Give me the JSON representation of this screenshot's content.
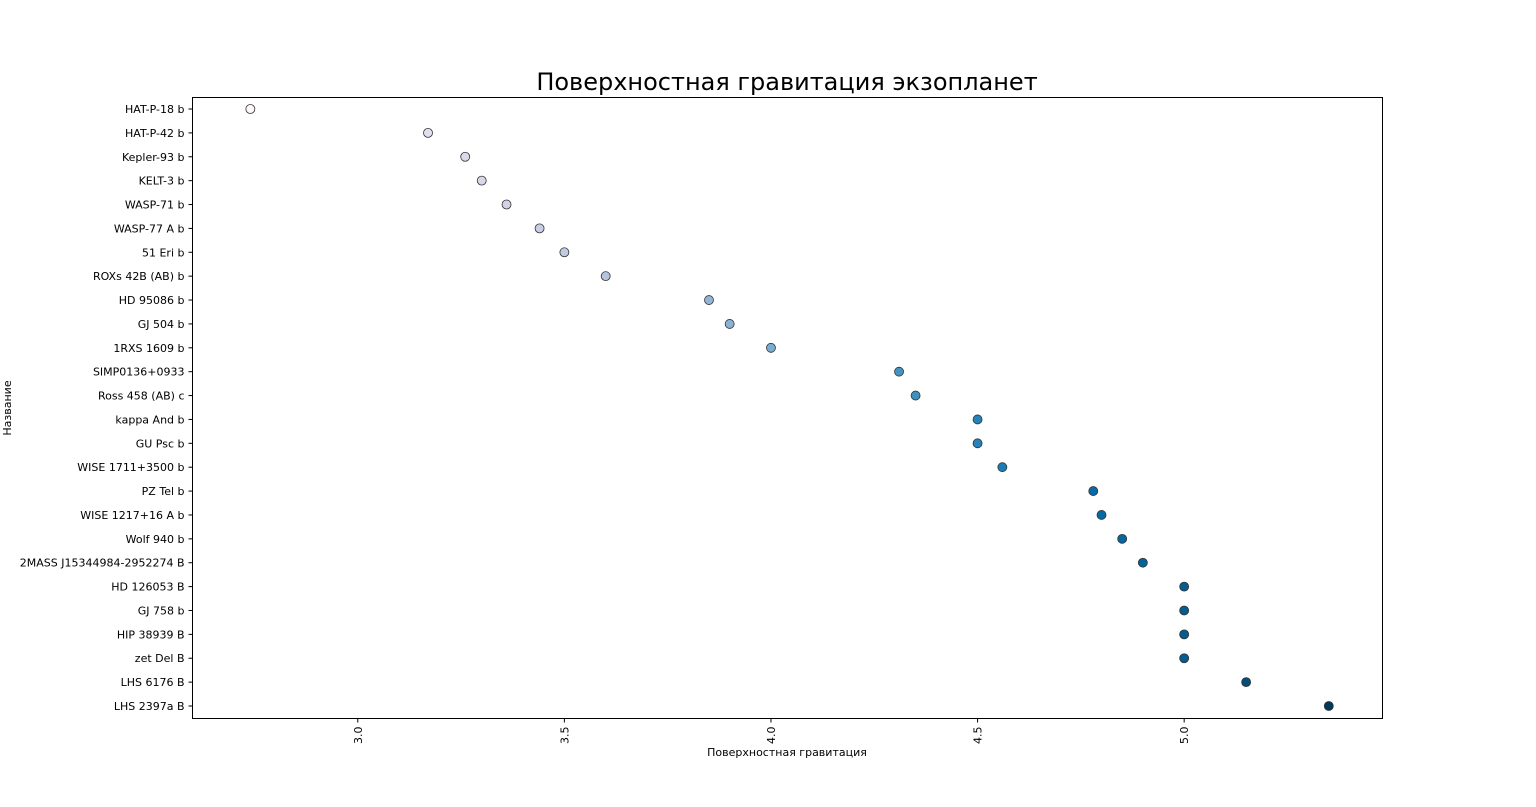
{
  "chart_data": {
    "type": "scatter",
    "title": "Поверхностная гравитация экзопланет",
    "xlabel": "Поверхностная гравитация",
    "ylabel": "Название",
    "xlim": [
      2.6,
      5.48
    ],
    "xticks": [
      "3.0",
      "3.5",
      "4.0",
      "4.5",
      "5.0"
    ],
    "grid": false,
    "colormap": [
      "#fff7fb",
      "#023858"
    ],
    "points": [
      {
        "name": "HAT-P-18 b",
        "value": 2.74
      },
      {
        "name": "HAT-P-42 b",
        "value": 3.17
      },
      {
        "name": "Kepler-93 b",
        "value": 3.26
      },
      {
        "name": "KELT-3 b",
        "value": 3.3
      },
      {
        "name": "WASP-71 b",
        "value": 3.36
      },
      {
        "name": "WASP-77 A b",
        "value": 3.44
      },
      {
        "name": "51 Eri b",
        "value": 3.5
      },
      {
        "name": "ROXs 42B (AB) b",
        "value": 3.6
      },
      {
        "name": "HD 95086 b",
        "value": 3.85
      },
      {
        "name": "GJ 504 b",
        "value": 3.9
      },
      {
        "name": "1RXS 1609 b",
        "value": 4.0
      },
      {
        "name": "SIMP0136+0933",
        "value": 4.31
      },
      {
        "name": "Ross 458 (AB) c",
        "value": 4.35
      },
      {
        "name": "kappa And b",
        "value": 4.5
      },
      {
        "name": "GU Psc b",
        "value": 4.5
      },
      {
        "name": "WISE 1711+3500 b",
        "value": 4.56
      },
      {
        "name": "PZ Tel b",
        "value": 4.78
      },
      {
        "name": "WISE 1217+16 A b",
        "value": 4.8
      },
      {
        "name": "Wolf 940 b",
        "value": 4.85
      },
      {
        "name": "2MASS J15344984-2952274 B",
        "value": 4.9
      },
      {
        "name": "HD 126053 B",
        "value": 5.0
      },
      {
        "name": "GJ 758 b",
        "value": 5.0
      },
      {
        "name": "HIP 38939 B",
        "value": 5.0
      },
      {
        "name": "zet Del B",
        "value": 5.0
      },
      {
        "name": "LHS 6176 B",
        "value": 5.15
      },
      {
        "name": "LHS 2397a B",
        "value": 5.35
      }
    ]
  }
}
